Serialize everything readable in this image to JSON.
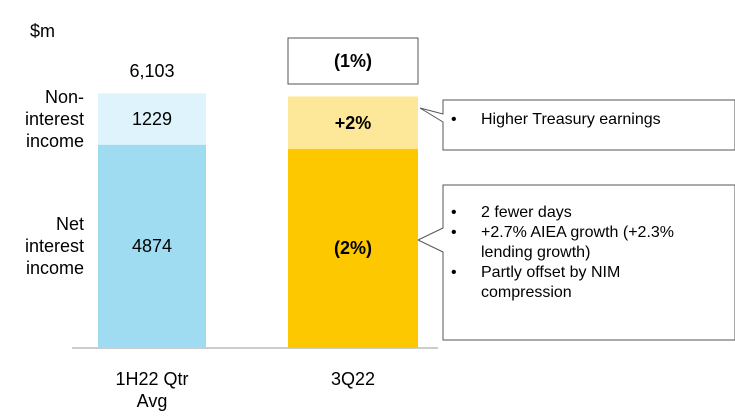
{
  "chart_data": {
    "type": "stacked_bar",
    "unit_label": "$m",
    "categories": [
      "1H22 Qtr Avg",
      "3Q22"
    ],
    "ylim": [
      0,
      7000
    ],
    "series": [
      {
        "name": "Net interest income",
        "color": "#9fdcf2",
        "values": [
          4874,
          null
        ],
        "change": -2,
        "change_label": "(2%)",
        "change_color": "#fdc800"
      },
      {
        "name": "Non-interest income",
        "color": "#def3fb",
        "values": [
          1229,
          null
        ],
        "change": 2,
        "change_label": "+2%",
        "change_color": "#fde89a"
      }
    ],
    "total": 6103,
    "total_label": "6,103",
    "total_change": -1,
    "total_change_label": "(1%)",
    "callouts": [
      {
        "series": 1,
        "bullets": [
          "Higher Treasury earnings"
        ]
      },
      {
        "series": 0,
        "bullets": [
          "2 fewer days",
          "+2.7% AIEA growth (+2.3% lending growth)",
          "Partly offset by NIM compression"
        ]
      }
    ]
  }
}
